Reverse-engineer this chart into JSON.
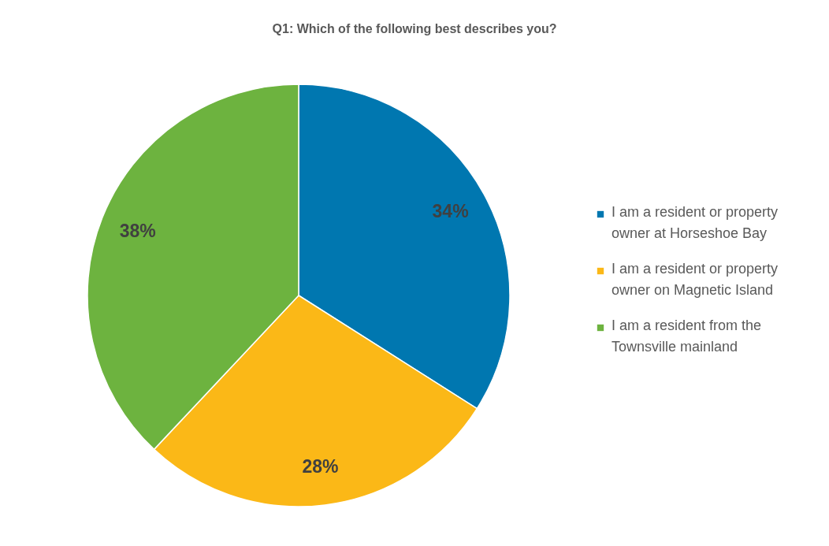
{
  "chart_data": {
    "type": "pie",
    "title": "Q1: Which of the following best describes you?",
    "categories": [
      "I am a resident or property owner at Horseshoe Bay",
      "I am a resident or property owner on Magnetic Island",
      "I am a resident from the Townsville mainland"
    ],
    "values": [
      34,
      28,
      38
    ],
    "colors": [
      "#0077b0",
      "#fbb817",
      "#6db33f"
    ],
    "value_labels": [
      "34%",
      "28%",
      "38%"
    ],
    "legend": "right"
  }
}
